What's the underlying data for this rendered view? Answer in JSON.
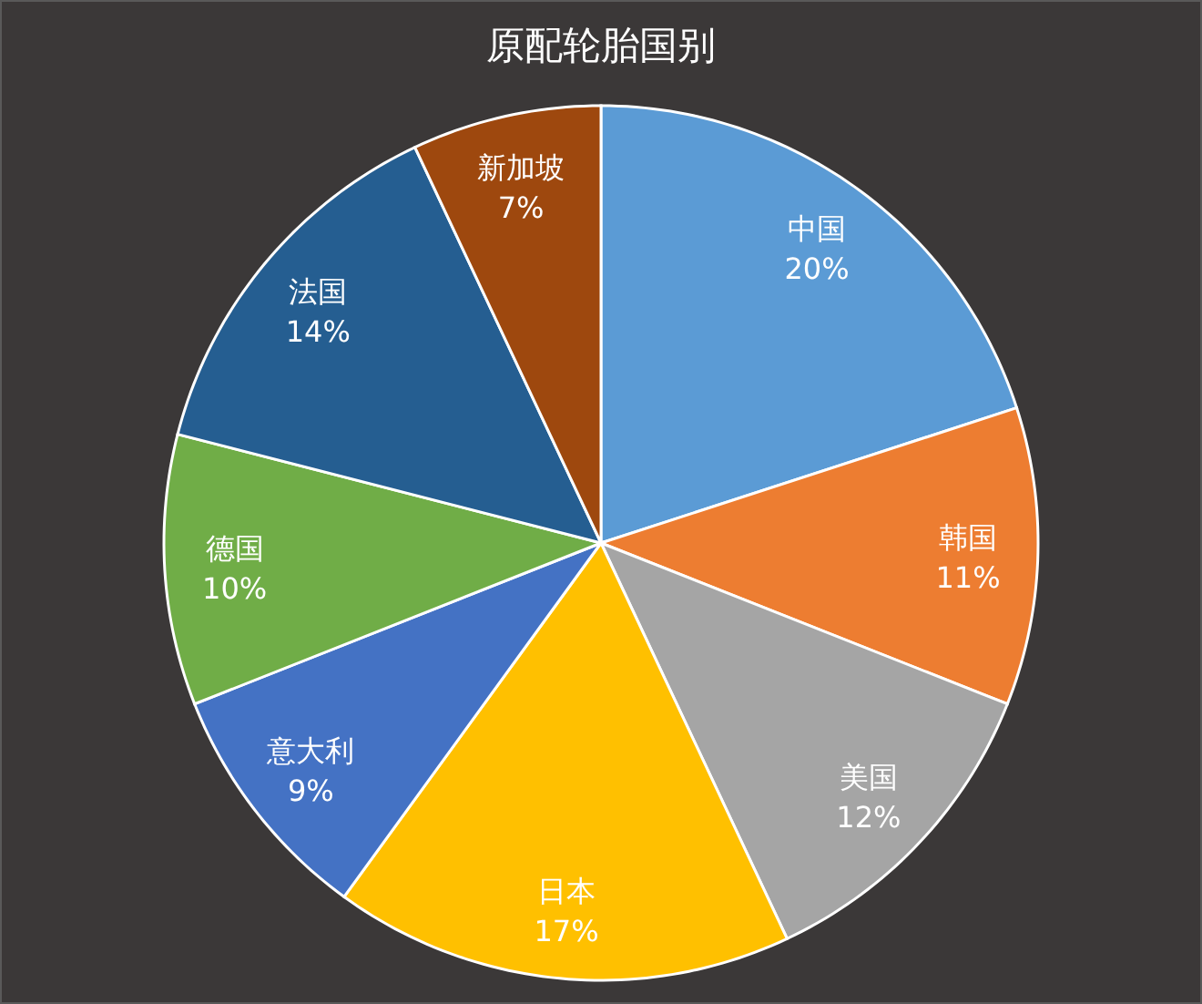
{
  "chart_data": {
    "type": "pie",
    "title": "原配轮胎国别",
    "categories": [
      "中国",
      "韩国",
      "美国",
      "日本",
      "意大利",
      "德国",
      "法国",
      "新加坡"
    ],
    "values": [
      20,
      11,
      12,
      17,
      9,
      10,
      14,
      7
    ],
    "colors": [
      "#5b9bd5",
      "#ed7d31",
      "#a5a5a5",
      "#ffc000",
      "#4472c4",
      "#70ad47",
      "#255e91",
      "#9e480e"
    ],
    "data_labels": true,
    "value_labels": [
      "20%",
      "11%",
      "12%",
      "17%",
      "9%",
      "10%",
      "14%",
      "7%"
    ],
    "legend": false
  }
}
